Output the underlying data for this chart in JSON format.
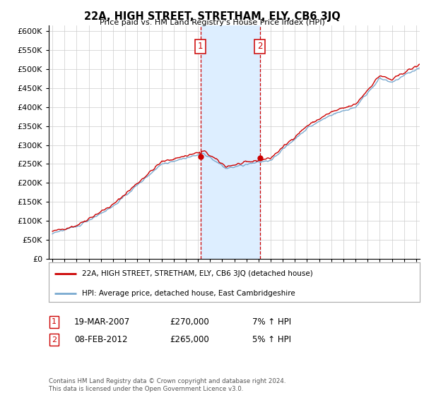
{
  "title": "22A, HIGH STREET, STRETHAM, ELY, CB6 3JQ",
  "subtitle": "Price paid vs. HM Land Registry's House Price Index (HPI)",
  "ylabel_ticks": [
    0,
    50000,
    100000,
    150000,
    200000,
    250000,
    300000,
    350000,
    400000,
    450000,
    500000,
    550000,
    600000
  ],
  "ylim": [
    0,
    615000
  ],
  "xlim": [
    1994.7,
    2025.3
  ],
  "sale1_year": 2007.21,
  "sale1_price": 270000,
  "sale2_year": 2012.1,
  "sale2_price": 265000,
  "sale1_label": "1",
  "sale2_label": "2",
  "sale1_date": "19-MAR-2007",
  "sale2_date": "08-FEB-2012",
  "sale1_hpi": "7% ↑ HPI",
  "sale2_hpi": "5% ↑ HPI",
  "line1_label": "22A, HIGH STREET, STRETHAM, ELY, CB6 3JQ (detached house)",
  "line2_label": "HPI: Average price, detached house, East Cambridgeshire",
  "line1_color": "#cc0000",
  "line2_color": "#7aaad0",
  "shade_color": "#ddeeff",
  "marker_box_color": "#cc0000",
  "footnote": "Contains HM Land Registry data © Crown copyright and database right 2024.\nThis data is licensed under the Open Government Licence v3.0.",
  "background_color": "#ffffff",
  "grid_color": "#cccccc"
}
